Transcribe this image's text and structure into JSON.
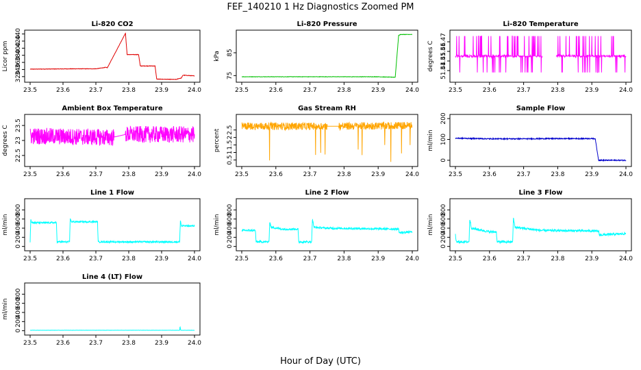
{
  "title": "FEF_140210 1 Hz Diagnostics Zoomed PM",
  "xlabel": "Hour of Day (UTC)",
  "chart_data": [
    {
      "id": "co2",
      "type": "line",
      "title": "Li-820 CO2",
      "ylabel": "Licor ppm",
      "color": "#e00000",
      "xlim": [
        23.5,
        24.0
      ],
      "ylim": [
        310,
        445
      ],
      "xticks": [
        "23.5",
        "23.6",
        "23.7",
        "23.8",
        "23.9",
        "24.0"
      ],
      "yticks": [
        320,
        340,
        360,
        380,
        400,
        420,
        440
      ],
      "noise": 0.6,
      "x": [
        23.5,
        23.64,
        23.7,
        23.73,
        23.735,
        23.79,
        23.795,
        23.83,
        23.835,
        23.88,
        23.885,
        23.945,
        23.95,
        23.96,
        23.965,
        24.0
      ],
      "y": [
        341,
        342,
        342,
        346,
        345,
        442,
        382,
        382,
        350,
        350,
        313,
        312,
        314,
        316,
        324,
        322
      ]
    },
    {
      "id": "pressure",
      "type": "line",
      "title": "Li-820 Pressure",
      "ylabel": "kPa",
      "color": "#00c000",
      "xlim": [
        23.5,
        24.0
      ],
      "ylim": [
        73,
        94
      ],
      "xticks": [
        "23.5",
        "23.6",
        "23.7",
        "23.8",
        "23.9",
        "24.0"
      ],
      "yticks": [
        75,
        85
      ],
      "noise": 0.08,
      "x": [
        23.5,
        23.9,
        23.915,
        23.95,
        23.96,
        23.965,
        24.0
      ],
      "y": [
        74.5,
        74.5,
        74.4,
        74.3,
        92.5,
        93.0,
        93.0
      ]
    },
    {
      "id": "licor_temp",
      "type": "line",
      "title": "Li-820 Temperature",
      "ylabel": "degrees C",
      "color": "#ff00ff",
      "xlim": [
        23.5,
        24.0
      ],
      "ylim": [
        51.43,
        51.48
      ],
      "xticks": [
        "23.5",
        "23.6",
        "23.7",
        "23.8",
        "23.9",
        "24.0"
      ],
      "yticks": [
        51.44,
        51.45,
        51.46,
        51.47
      ],
      "gaps": [
        [
          23.755,
          23.795
        ]
      ],
      "levels": [
        51.438,
        51.455,
        51.476
      ],
      "noise": 0,
      "style": "digitized",
      "x": [
        23.5,
        24.0
      ],
      "y": [
        51.455,
        51.455
      ]
    },
    {
      "id": "ambient_temp",
      "type": "line",
      "title": "Ambient Box Temperature",
      "ylabel": "degrees C",
      "color": "#ff00ff",
      "xlim": [
        23.5,
        24.0
      ],
      "ylim": [
        22.2,
        23.8
      ],
      "xticks": [
        "23.5",
        "23.6",
        "23.7",
        "23.8",
        "23.9",
        "24.0"
      ],
      "yticks": [
        22.5,
        23.0,
        23.5
      ],
      "noise": 0.28,
      "gaps": [
        [
          23.755,
          23.79
        ]
      ],
      "x": [
        23.5,
        23.75,
        23.79,
        24.0
      ],
      "y": [
        23.15,
        23.1,
        23.2,
        23.2
      ]
    },
    {
      "id": "rh",
      "type": "line",
      "title": "Gas Stream RH",
      "ylabel": "percent",
      "color": "#ffa500",
      "xlim": [
        23.5,
        24.0
      ],
      "ylim": [
        0.2,
        3.4
      ],
      "xticks": [
        "23.5",
        "23.6",
        "23.7",
        "23.8",
        "23.9",
        "24.0"
      ],
      "yticks": [
        0.5,
        1.0,
        1.5,
        2.0,
        2.5
      ],
      "noise": 0.25,
      "spikes": true,
      "gaps": [
        [
          23.75,
          23.785
        ]
      ],
      "x": [
        23.5,
        23.75,
        23.785,
        24.0
      ],
      "y": [
        2.75,
        2.75,
        2.75,
        2.8
      ]
    },
    {
      "id": "sample_flow",
      "type": "line",
      "title": "Sample Flow",
      "ylabel": "ml/min",
      "color": "#0000cc",
      "xlim": [
        23.5,
        24.0
      ],
      "ylim": [
        -20,
        210
      ],
      "xticks": [
        "23.5",
        "23.6",
        "23.7",
        "23.8",
        "23.9",
        "24.0"
      ],
      "yticks": [
        0,
        100,
        200
      ],
      "noise": 2.5,
      "x": [
        23.5,
        23.6,
        23.7,
        23.8,
        23.91,
        23.915,
        23.92,
        24.0
      ],
      "y": [
        106,
        103,
        103,
        104,
        104,
        50,
        0,
        0
      ]
    },
    {
      "id": "line1",
      "type": "line",
      "title": "Line 1 Flow",
      "ylabel": "ml/min",
      "color": "#00ffff",
      "xlim": [
        23.5,
        24.0
      ],
      "ylim": [
        -50,
        1000
      ],
      "xticks": [
        "23.5",
        "23.6",
        "23.7",
        "23.8",
        "23.9",
        "24.0"
      ],
      "yticks": [
        0,
        200,
        400,
        600,
        800
      ],
      "noise": 18,
      "x": [
        23.5,
        23.502,
        23.505,
        23.58,
        23.582,
        23.62,
        23.622,
        23.625,
        23.705,
        23.707,
        23.955,
        23.957,
        23.96,
        24.0
      ],
      "y": [
        100,
        600,
        520,
        520,
        100,
        100,
        620,
        540,
        540,
        100,
        100,
        580,
        450,
        450
      ]
    },
    {
      "id": "line2",
      "type": "line",
      "title": "Line 2 Flow",
      "ylabel": "ml/min",
      "color": "#00ffff",
      "xlim": [
        23.5,
        24.0
      ],
      "ylim": [
        -50,
        1000
      ],
      "xticks": [
        "23.5",
        "23.6",
        "23.7",
        "23.8",
        "23.9",
        "24.0"
      ],
      "yticks": [
        0,
        200,
        400,
        600,
        800
      ],
      "noise": 22,
      "x": [
        23.5,
        23.54,
        23.542,
        23.58,
        23.582,
        23.586,
        23.62,
        23.665,
        23.667,
        23.705,
        23.707,
        23.712,
        23.75,
        23.96,
        23.962,
        24.0
      ],
      "y": [
        350,
        350,
        100,
        100,
        550,
        420,
        380,
        380,
        100,
        100,
        600,
        420,
        400,
        380,
        300,
        320
      ]
    },
    {
      "id": "line3",
      "type": "line",
      "title": "Line 3 Flow",
      "ylabel": "ml/min",
      "color": "#00ffff",
      "xlim": [
        23.5,
        24.0
      ],
      "ylim": [
        -50,
        1000
      ],
      "xticks": [
        "23.5",
        "23.6",
        "23.7",
        "23.8",
        "23.9",
        "24.0"
      ],
      "yticks": [
        0,
        200,
        400,
        600,
        800
      ],
      "noise": 25,
      "x": [
        23.5,
        23.502,
        23.54,
        23.542,
        23.547,
        23.6,
        23.62,
        23.622,
        23.668,
        23.67,
        23.675,
        23.75,
        23.9,
        23.92,
        23.922,
        24.0
      ],
      "y": [
        250,
        100,
        100,
        600,
        400,
        320,
        320,
        100,
        100,
        620,
        420,
        350,
        340,
        330,
        250,
        280
      ]
    },
    {
      "id": "line4",
      "type": "line",
      "title": "Line 4 (LT) Flow",
      "ylabel": "ml/min",
      "color": "#00ffff",
      "xlim": [
        23.5,
        24.0
      ],
      "ylim": [
        -50,
        1000
      ],
      "xticks": [
        "23.5",
        "23.6",
        "23.7",
        "23.8",
        "23.9",
        "24.0"
      ],
      "yticks": [
        0,
        200,
        400,
        600,
        800
      ],
      "noise": 2,
      "x": [
        23.5,
        23.955,
        23.956,
        23.958,
        23.96,
        24.0
      ],
      "y": [
        10,
        10,
        100,
        10,
        10,
        10
      ]
    }
  ]
}
